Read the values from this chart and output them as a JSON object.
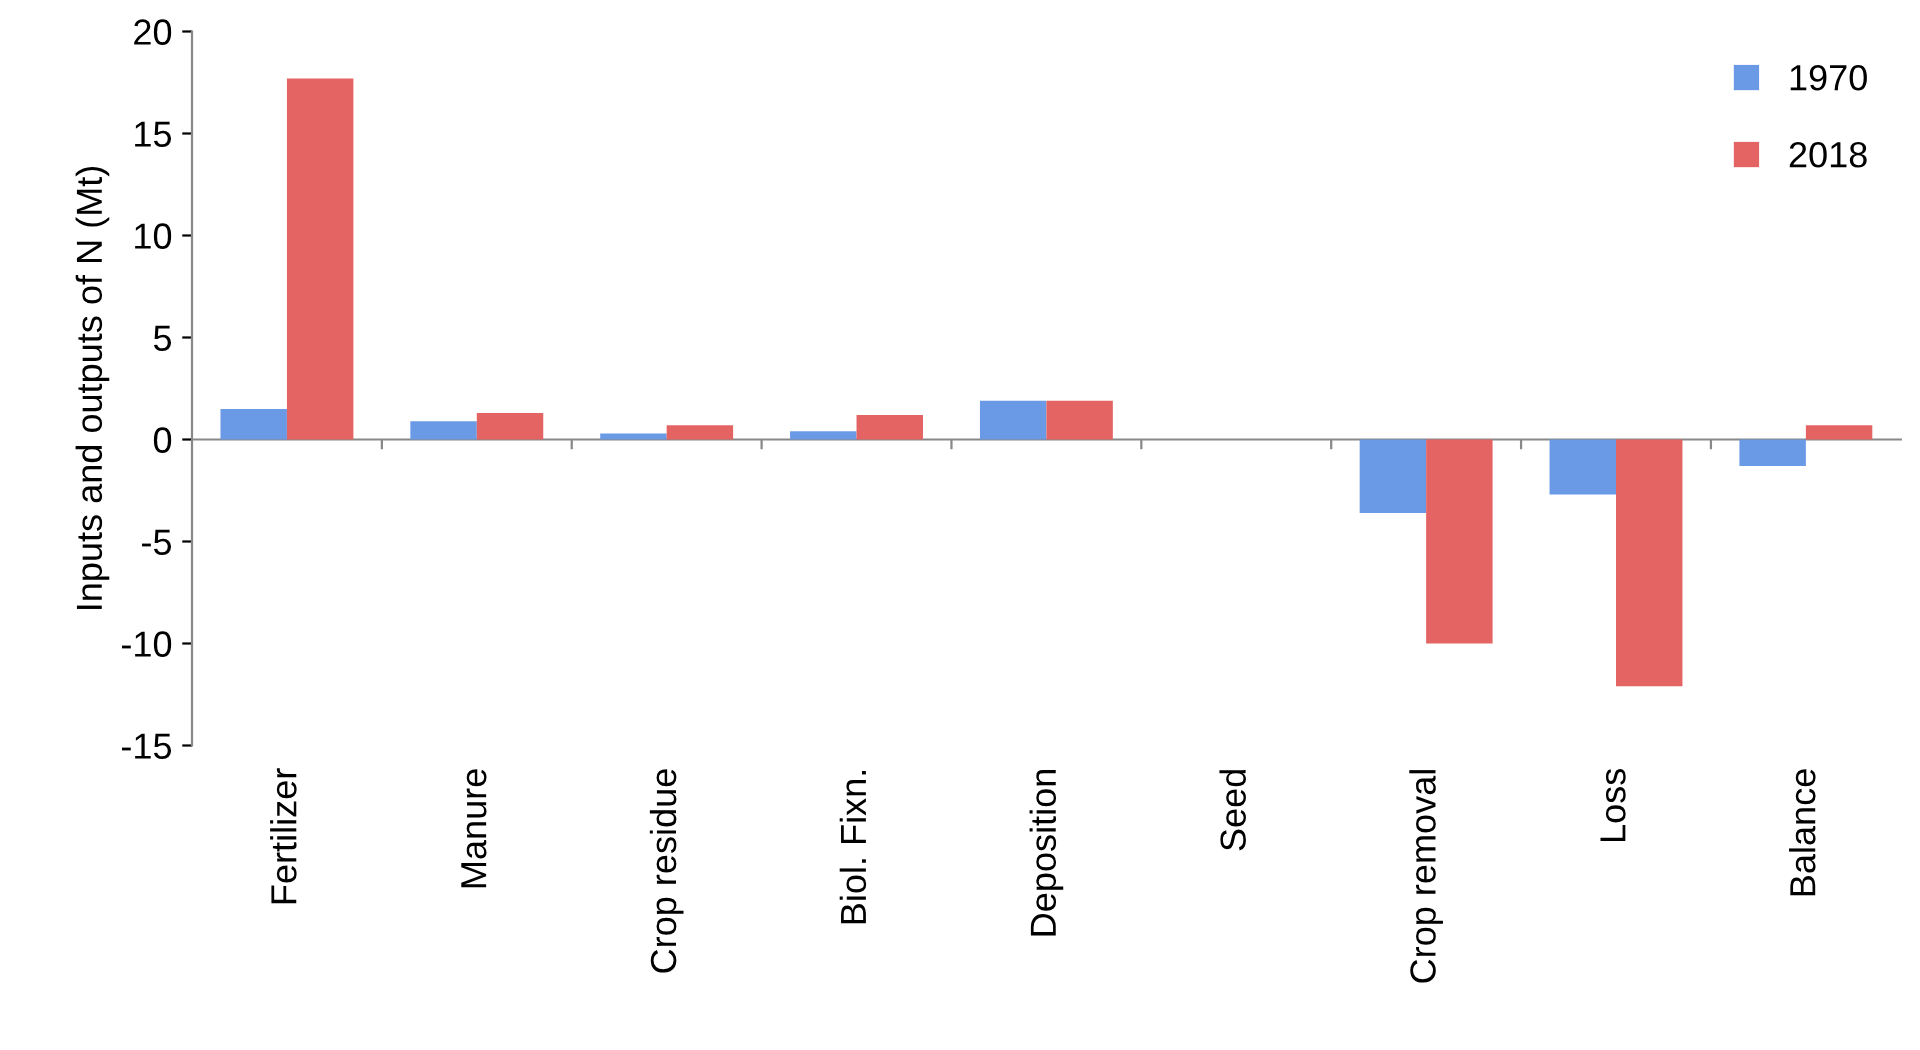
{
  "chart_data": {
    "type": "bar",
    "ylabel": "Inputs and outputs of N (Mt)",
    "categories": [
      "Fertilizer",
      "Manure",
      "Crop residue",
      "Biol. Fixn.",
      "Deposition",
      "Seed",
      "Crop removal",
      "Loss",
      "Balance"
    ],
    "series": [
      {
        "name": "1970",
        "color": "#6a9ae6",
        "values": [
          1.5,
          0.9,
          0.3,
          0.4,
          1.9,
          0,
          -3.6,
          -2.7,
          -1.3
        ]
      },
      {
        "name": "2018",
        "color": "#e46464",
        "values": [
          17.7,
          1.3,
          0.7,
          1.2,
          1.9,
          0,
          -10.0,
          -12.1,
          0.7
        ]
      }
    ],
    "ylim": [
      -15,
      20
    ],
    "yticks": [
      -15,
      -10,
      -5,
      0,
      5,
      10,
      15,
      20
    ],
    "legend": "top right"
  }
}
